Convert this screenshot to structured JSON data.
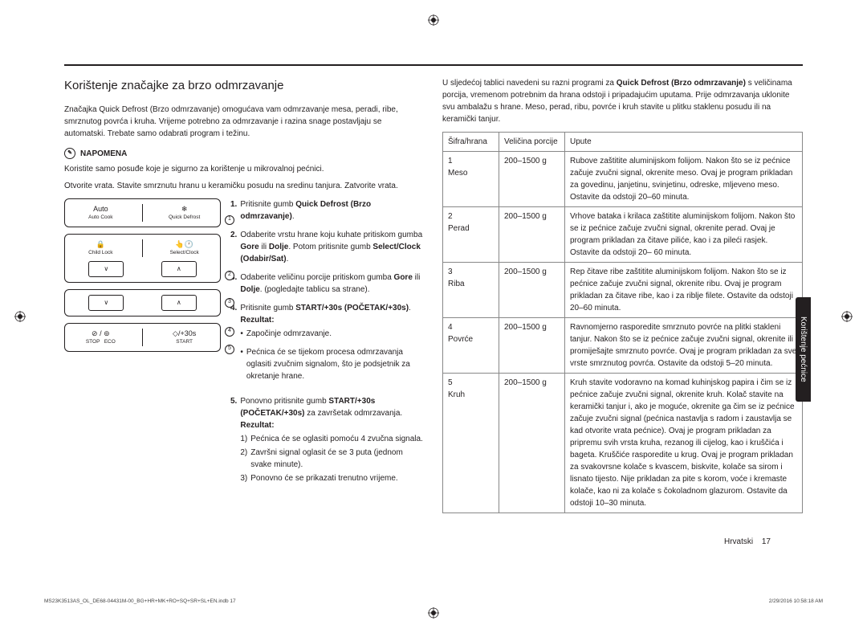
{
  "title": "Korištenje značajke za brzo odmrzavanje",
  "intro": "Značajka Quick Defrost (Brzo odmrzavanje) omogućava vam odmrzavanje mesa, peradi, ribe, smrznutog povrća i kruha. Vrijeme potrebno za odmrzavanje i razina snage postavljaju se automatski. Trebate samo odabrati program i težinu.",
  "note_label": "NAPOMENA",
  "note_text": "Koristite samo posuđe koje je sigurno za korištenje u mikrovalnoj pećnici.",
  "instruction_line": "Otvorite vrata. Stavite smrznutu hranu u keramičku posudu na sredinu tanjura. Zatvorite vrata.",
  "panel_labels": {
    "auto_cook": "Auto Cook",
    "quick_defrost": "Quick Defrost",
    "child_lock": "Child Lock",
    "select_clock": "Select/Clock",
    "stop": "STOP",
    "eco": "ECO",
    "plus30": "+30s",
    "start": "START"
  },
  "steps": [
    {
      "num": "1.",
      "html": "Pritisnite gumb <b>Quick Defrost (Brzo odmrzavanje)</b>."
    },
    {
      "num": "2.",
      "html": "Odaberite vrstu hrane koju kuhate pritiskom gumba <b>Gore</b> ili <b>Dolje</b>. Potom pritisnite gumb <b>Select/Clock (Odabir/Sat)</b>."
    },
    {
      "num": "3.",
      "html": "Odaberite veličinu porcije pritiskom gumba <b>Gore</b> ili <b>Dolje</b>. (pogledajte tablicu sa strane)."
    },
    {
      "num": "4.",
      "html": "Pritisnite gumb <b>START/+30s (POČETAK/+30s)</b>. <b>Rezultat:</b>",
      "bullets": [
        "Započinje odmrzavanje.",
        "Pećnica će se tijekom procesa odmrzavanja oglasiti zvučnim signalom, što je podsjetnik za okretanje hrane."
      ]
    },
    {
      "num": "5.",
      "html": "Ponovno pritisnite gumb <b>START/+30s (POČETAK/+30s)</b> za završetak odmrzavanja. <b>Rezultat:</b>",
      "numbered": [
        "Pećnica će se oglasiti pomoću 4 zvučna signala.",
        "Završni signal oglasit će se 3 puta (jednom svake minute).",
        "Ponovno će se prikazati trenutno vrijeme."
      ]
    }
  ],
  "right_intro": "U sljedećoj tablici navedeni su razni programi za <b>Quick Defrost (Brzo odmrzavanje)</b> s veličinama porcija, vremenom potrebnim da hrana odstoji i pripadajućim uputama. Prije odmrzavanja uklonite svu ambalažu s hrane. Meso, perad, ribu, povrće i kruh stavite u plitku staklenu posudu ili na keramički tanjur.",
  "table": {
    "headers": [
      "Šifra/hrana",
      "Veličina porcije",
      "Upute"
    ],
    "rows": [
      {
        "code": "1",
        "name": "Meso",
        "portion": "200–1500 g",
        "instr": "Rubove zaštitite aluminijskom folijom. Nakon što se iz pećnice začuje zvučni signal, okrenite meso. Ovaj je program prikladan za govedinu, janjetinu, svinjetinu, odreske, mljeveno meso. Ostavite da odstoji 20–60 minuta."
      },
      {
        "code": "2",
        "name": "Perad",
        "portion": "200–1500 g",
        "instr": "Vrhove bataka i krilaca zaštitite aluminijskom folijom. Nakon što se iz pećnice začuje zvučni signal, okrenite perad. Ovaj je program prikladan za čitave piliće, kao i za pileći rasjek. Ostavite da odstoji 20– 60 minuta."
      },
      {
        "code": "3",
        "name": "Riba",
        "portion": "200–1500 g",
        "instr": "Rep čitave ribe zaštitite aluminijskom folijom. Nakon što se iz pećnice začuje zvučni signal, okrenite ribu. Ovaj je program prikladan za čitave ribe, kao i za riblje filete. Ostavite da odstoji 20–60 minuta."
      },
      {
        "code": "4",
        "name": "Povrće",
        "portion": "200–1500 g",
        "instr": "Ravnomjerno rasporedite smrznuto povrće na plitki stakleni tanjur. Nakon što se iz pećnice začuje zvučni signal, okrenite ili promiješajte smrznuto povrće. Ovaj je program prikladan za sve vrste smrznutog povrća. Ostavite da odstoji 5–20 minuta."
      },
      {
        "code": "5",
        "name": "Kruh",
        "portion": "200–1500 g",
        "instr": "Kruh stavite vodoravno na komad kuhinjskog papira i čim se iz pećnice začuje zvučni signal, okrenite kruh. Kolač stavite na keramički tanjur i, ako je moguće, okrenite ga čim se iz pećnice začuje zvučni signal (pećnica nastavlja s radom i zaustavlja se kad otvorite vrata pećnice). Ovaj je program prikladan za pripremu svih vrsta kruha, rezanog ili cijelog, kao i kruščića i bageta. Kruščiće rasporedite u krug. Ovaj je program prikladan za svakovrsne kolače s kvascem, biskvite, kolače sa sirom i lisnato tijesto. Nije prikladan za pite s korom, voće i kremaste kolače, kao ni za kolače s čokoladnom glazurom. Ostavite da odstoji 10–30 minuta."
      }
    ]
  },
  "side_tab": "Korištenje pećnice",
  "footer_lang": "Hrvatski",
  "footer_page": "17",
  "print_file": "MS23K3513AS_OL_DE68-04431M-00_BG+HR+MK+RO+SQ+SR+SL+EN.indb   17",
  "print_time": "2/29/2016   10:58:18 AM"
}
